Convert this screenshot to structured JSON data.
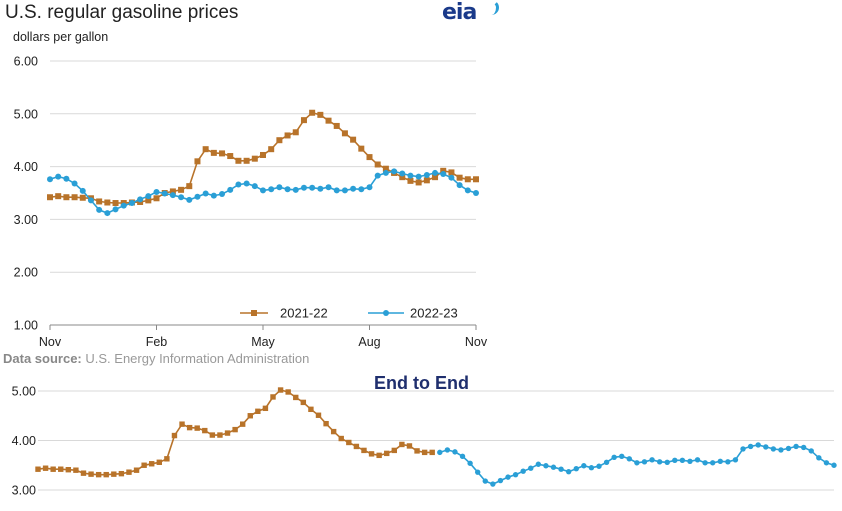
{
  "top": {
    "title": "U.S. regular gasoline prices",
    "ylabel": "dollars per gallon",
    "logo": "eia",
    "source_label": "Data source:",
    "source_text": "U.S. Energy Information Administration"
  },
  "bottom": {
    "title": "End to End"
  },
  "colors": {
    "series_2021_22": "#b8732a",
    "series_2022_23": "#2a9fd6",
    "grid": "#d9d9d9",
    "axis": "#888888"
  },
  "chart_data": [
    {
      "type": "line",
      "title": "U.S. regular gasoline prices",
      "ylabel": "dollars per gallon",
      "xlabel": "",
      "ylim": [
        1.0,
        6.0
      ],
      "yticks": [
        "6.00",
        "5.00",
        "4.00",
        "3.00",
        "2.00",
        "1.00"
      ],
      "xtick_labels": [
        "Nov",
        "Feb",
        "May",
        "Aug",
        "Nov"
      ],
      "xtick_weeks": [
        0,
        13,
        26,
        39,
        52
      ],
      "grid": true,
      "legend": "bottom-right",
      "series": [
        {
          "name": "2021-22",
          "marker": "square",
          "values": [
            3.42,
            3.44,
            3.42,
            3.42,
            3.41,
            3.4,
            3.34,
            3.32,
            3.31,
            3.31,
            3.32,
            3.33,
            3.36,
            3.4,
            3.5,
            3.53,
            3.56,
            3.63,
            4.1,
            4.33,
            4.26,
            4.25,
            4.2,
            4.11,
            4.11,
            4.15,
            4.22,
            4.33,
            4.5,
            4.59,
            4.65,
            4.88,
            5.02,
            4.98,
            4.87,
            4.77,
            4.63,
            4.51,
            4.34,
            4.18,
            4.04,
            3.96,
            3.88,
            3.8,
            3.73,
            3.7,
            3.74,
            3.8,
            3.92,
            3.89,
            3.79,
            3.76,
            3.76
          ]
        },
        {
          "name": "2022-23",
          "marker": "circle",
          "values": [
            3.76,
            3.81,
            3.77,
            3.68,
            3.54,
            3.36,
            3.18,
            3.12,
            3.19,
            3.26,
            3.31,
            3.38,
            3.44,
            3.52,
            3.49,
            3.46,
            3.42,
            3.37,
            3.43,
            3.49,
            3.45,
            3.48,
            3.56,
            3.66,
            3.68,
            3.63,
            3.55,
            3.57,
            3.61,
            3.57,
            3.56,
            3.6,
            3.6,
            3.58,
            3.61,
            3.55,
            3.55,
            3.58,
            3.57,
            3.61,
            3.83,
            3.88,
            3.91,
            3.87,
            3.83,
            3.81,
            3.84,
            3.88,
            3.86,
            3.79,
            3.65,
            3.55,
            3.5
          ]
        }
      ]
    },
    {
      "type": "line",
      "title": "End to End",
      "xlabel": "",
      "ylabel": "",
      "ylim": [
        2.8,
        5.2
      ],
      "yticks": [
        "5.00",
        "4.00",
        "3.00"
      ],
      "grid": true,
      "note": "2021-22 series followed by 2022-23 series",
      "series": [
        {
          "name": "2021-22",
          "marker": "square",
          "values": [
            3.42,
            3.44,
            3.42,
            3.42,
            3.41,
            3.4,
            3.34,
            3.32,
            3.31,
            3.31,
            3.32,
            3.33,
            3.36,
            3.4,
            3.5,
            3.53,
            3.56,
            3.63,
            4.1,
            4.33,
            4.26,
            4.25,
            4.2,
            4.11,
            4.11,
            4.15,
            4.22,
            4.33,
            4.5,
            4.59,
            4.65,
            4.88,
            5.02,
            4.98,
            4.87,
            4.77,
            4.63,
            4.51,
            4.34,
            4.18,
            4.04,
            3.96,
            3.88,
            3.8,
            3.73,
            3.7,
            3.74,
            3.8,
            3.92,
            3.89,
            3.79,
            3.76,
            3.76
          ]
        },
        {
          "name": "2022-23",
          "marker": "circle",
          "values": [
            3.76,
            3.81,
            3.77,
            3.68,
            3.54,
            3.36,
            3.18,
            3.12,
            3.19,
            3.26,
            3.31,
            3.38,
            3.44,
            3.52,
            3.49,
            3.46,
            3.42,
            3.37,
            3.43,
            3.49,
            3.45,
            3.48,
            3.56,
            3.66,
            3.68,
            3.63,
            3.55,
            3.57,
            3.61,
            3.57,
            3.56,
            3.6,
            3.6,
            3.58,
            3.61,
            3.55,
            3.55,
            3.58,
            3.57,
            3.61,
            3.83,
            3.88,
            3.91,
            3.87,
            3.83,
            3.81,
            3.84,
            3.88,
            3.86,
            3.79,
            3.65,
            3.55,
            3.5
          ]
        }
      ]
    }
  ]
}
